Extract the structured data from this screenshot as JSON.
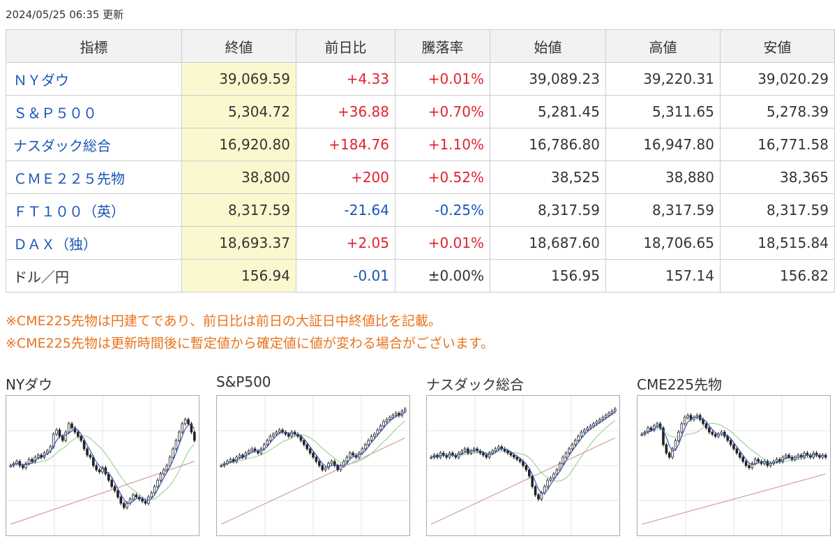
{
  "updated": "2024/05/25 06:35 更新",
  "table": {
    "headers": [
      "指標",
      "終値",
      "前日比",
      "騰落率",
      "始値",
      "高値",
      "安値"
    ],
    "rows": [
      {
        "name": "ＮＹダウ",
        "link": true,
        "close": "39,069.59",
        "change": "+4.33",
        "pct": "+0.01%",
        "trend": "up",
        "open": "39,089.23",
        "high": "39,220.31",
        "low": "39,020.29"
      },
      {
        "name": "Ｓ＆Ｐ５００",
        "link": true,
        "close": "5,304.72",
        "change": "+36.88",
        "pct": "+0.70%",
        "trend": "up",
        "open": "5,281.45",
        "high": "5,311.65",
        "low": "5,278.39"
      },
      {
        "name": "ナスダック総合",
        "link": true,
        "close": "16,920.80",
        "change": "+184.76",
        "pct": "+1.10%",
        "trend": "up",
        "open": "16,786.80",
        "high": "16,947.80",
        "low": "16,771.58"
      },
      {
        "name": "ＣＭＥ２２５先物",
        "link": true,
        "close": "38,800",
        "change": "+200",
        "pct": "+0.52%",
        "trend": "up",
        "open": "38,525",
        "high": "38,880",
        "low": "38,365"
      },
      {
        "name": "ＦＴ１００（英）",
        "link": true,
        "close": "8,317.59",
        "change": "-21.64",
        "pct": "-0.25%",
        "trend": "down",
        "open": "8,317.59",
        "high": "8,317.59",
        "low": "8,317.59"
      },
      {
        "name": "ＤＡＸ（独）",
        "link": true,
        "close": "18,693.37",
        "change": "+2.05",
        "pct": "+0.01%",
        "trend": "up",
        "open": "18,687.60",
        "high": "18,706.65",
        "low": "18,515.84"
      },
      {
        "name": "ドル／円",
        "link": false,
        "close": "156.94",
        "change": "-0.01",
        "pct": "±0.00%",
        "trend": "mixed",
        "open": "156.95",
        "high": "157.14",
        "low": "156.82"
      }
    ]
  },
  "notes": [
    "※CME225先物は円建てであり、前日比は前日の大証日中終値比を記載。",
    "※CME225先物は更新時間後に暫定値から確定値に値が変わる場合がございます。"
  ],
  "charts": [
    {
      "title": "NYダウ",
      "series": [
        40,
        41,
        42,
        40,
        39,
        41,
        43,
        42,
        44,
        45,
        44,
        46,
        47,
        49,
        55,
        57,
        54,
        52,
        56,
        60,
        58,
        56,
        54,
        52,
        48,
        45,
        44,
        40,
        38,
        37,
        39,
        36,
        33,
        30,
        28,
        25,
        22,
        20,
        22,
        24,
        26,
        25,
        24,
        23,
        22,
        25,
        27,
        30,
        33,
        36,
        38,
        40,
        44,
        48,
        52,
        56,
        60,
        62,
        60,
        56,
        52
      ]
    },
    {
      "title": "S&P500",
      "series": [
        40,
        41,
        42,
        43,
        42,
        44,
        45,
        44,
        46,
        47,
        48,
        47,
        46,
        48,
        50,
        52,
        54,
        55,
        56,
        57,
        56,
        55,
        54,
        56,
        55,
        54,
        52,
        50,
        48,
        46,
        44,
        42,
        40,
        38,
        39,
        41,
        42,
        40,
        38,
        40,
        42,
        44,
        46,
        45,
        44,
        46,
        48,
        50,
        52,
        54,
        55,
        57,
        59,
        61,
        62,
        63,
        64,
        65,
        64,
        66,
        67
      ]
    },
    {
      "title": "ナスダック総合",
      "series": [
        44,
        45,
        44,
        46,
        45,
        44,
        46,
        45,
        44,
        46,
        47,
        48,
        46,
        47,
        48,
        47,
        46,
        45,
        44,
        46,
        47,
        48,
        49,
        48,
        47,
        46,
        45,
        44,
        43,
        42,
        40,
        38,
        35,
        30,
        26,
        24,
        27,
        30,
        33,
        34,
        36,
        38,
        41,
        44,
        46,
        48,
        50,
        52,
        54,
        56,
        57,
        58,
        59,
        60,
        61,
        62,
        63,
        64,
        65,
        66,
        67
      ]
    },
    {
      "title": "CME225先物",
      "series": [
        55,
        56,
        58,
        57,
        59,
        60,
        58,
        50,
        46,
        44,
        48,
        52,
        56,
        60,
        63,
        64,
        62,
        63,
        64,
        62,
        60,
        58,
        56,
        55,
        54,
        55,
        56,
        54,
        52,
        50,
        48,
        46,
        44,
        42,
        40,
        39,
        41,
        43,
        42,
        41,
        42,
        40,
        41,
        42,
        43,
        42,
        44,
        45,
        44,
        43,
        44,
        45,
        44,
        46,
        45,
        44,
        46,
        45,
        44,
        45,
        44
      ]
    }
  ]
}
